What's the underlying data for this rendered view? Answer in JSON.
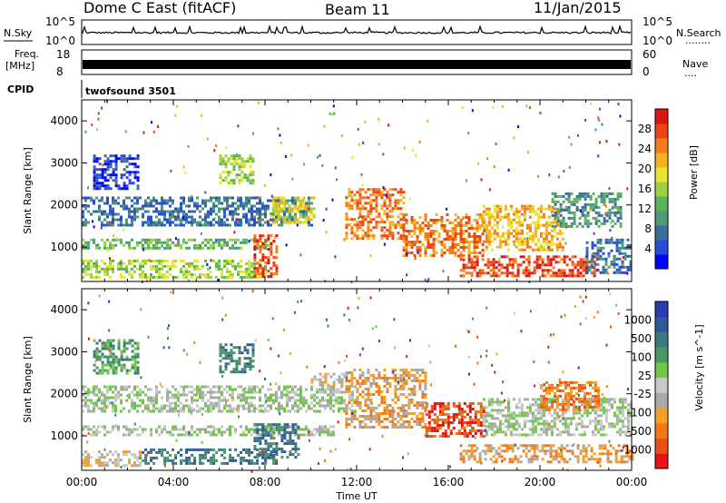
{
  "header": {
    "title": "Dome C East (fitACF)",
    "beam": "Beam 11",
    "date": "11/Jan/2015"
  },
  "colors": {
    "power": [
      "#0000ff",
      "#2a4dd8",
      "#3b6e9c",
      "#4f9a78",
      "#5ab45a",
      "#9ed23c",
      "#e6e632",
      "#f5b41e",
      "#f57d19",
      "#eb4614",
      "#dc1414"
    ],
    "velocity": [
      "#2a3cb4",
      "#32589c",
      "#3c7882",
      "#4a9664",
      "#6ec846",
      "#c8c8c8",
      "#aaaaaa",
      "#f5a028",
      "#f57814",
      "#eb5014",
      "#e61414"
    ]
  },
  "strips": {
    "nsky": {
      "label": "N.Sky",
      "ticks": [
        "10^5",
        "10^0"
      ],
      "right_ticks": [
        "10^5",
        "10^0"
      ],
      "right_label": "N.Search",
      "right_dots": "........"
    },
    "freq": {
      "label_line1": "Freq.",
      "label_line2": "[MHz]",
      "ticks": [
        "18",
        "8"
      ],
      "right_ticks": [
        "60",
        "0"
      ],
      "right_label": "Nave",
      "right_dots": "...."
    },
    "cpid": {
      "label": "CPID",
      "value": "twofsound 3501"
    }
  },
  "chart_data": [
    {
      "type": "heatmap",
      "name": "power",
      "title": "",
      "xlabel": "",
      "ylabel": "Slant Range [km]",
      "yticks": [
        "1000",
        "2000",
        "3000",
        "4000"
      ],
      "ylim": [
        180,
        4500
      ],
      "xlim": [
        0,
        24
      ],
      "colorbar": {
        "label": "Power [dB]",
        "ticks": [
          "4",
          "8",
          "12",
          "16",
          "20",
          "24",
          "28"
        ],
        "range": [
          0,
          30
        ]
      },
      "bands": [
        {
          "t0": 0.0,
          "t1": 8.0,
          "r0": 300,
          "r1": 700,
          "level": 5
        },
        {
          "t0": 0.0,
          "t1": 8.2,
          "r0": 950,
          "r1": 1200,
          "level": 4
        },
        {
          "t0": 0.0,
          "t1": 10.0,
          "r0": 1500,
          "r1": 2200,
          "level": 2
        },
        {
          "t0": 0.5,
          "t1": 2.5,
          "r0": 2400,
          "r1": 3200,
          "level": 1
        },
        {
          "t0": 6.0,
          "t1": 7.5,
          "r0": 2500,
          "r1": 3200,
          "level": 5
        },
        {
          "t0": 7.5,
          "t1": 8.5,
          "r0": 300,
          "r1": 1300,
          "level": 9
        },
        {
          "t0": 8.3,
          "t1": 10.2,
          "r0": 1600,
          "r1": 2200,
          "level": 6
        },
        {
          "t0": 11.5,
          "t1": 14.0,
          "r0": 1200,
          "r1": 2400,
          "level": 8
        },
        {
          "t0": 14.0,
          "t1": 17.5,
          "r0": 800,
          "r1": 1800,
          "level": 8
        },
        {
          "t0": 16.5,
          "t1": 22.5,
          "r0": 300,
          "r1": 800,
          "level": 9
        },
        {
          "t0": 17.5,
          "t1": 21.0,
          "r0": 900,
          "r1": 2000,
          "level": 7
        },
        {
          "t0": 20.5,
          "t1": 23.5,
          "r0": 1500,
          "r1": 2300,
          "level": 3
        },
        {
          "t0": 22.0,
          "t1": 24.0,
          "r0": 400,
          "r1": 1200,
          "level": 2
        }
      ]
    },
    {
      "type": "heatmap",
      "name": "velocity",
      "title": "",
      "xlabel": "Time UT",
      "ylabel": "Slant Range [km]",
      "yticks": [
        "1000",
        "2000",
        "3000",
        "4000"
      ],
      "ylim": [
        180,
        4500
      ],
      "xlim": [
        0,
        24
      ],
      "xticks": [
        "00:00",
        "04:00",
        "08:00",
        "12:00",
        "16:00",
        "20:00",
        "00:00"
      ],
      "colorbar": {
        "label": "Velocity [m s^-1]",
        "ticks": [
          "1000",
          "500",
          "100",
          "25",
          "-25",
          "-100",
          "-500",
          "-1000"
        ],
        "range": [
          -1200,
          1200
        ]
      },
      "bands": [
        {
          "t0": 0.0,
          "t1": 2.5,
          "r0": 300,
          "r1": 650,
          "level": 4
        },
        {
          "t0": 2.5,
          "t1": 8.5,
          "r0": 350,
          "r1": 700,
          "level": 8
        },
        {
          "t0": 0.0,
          "t1": 11.0,
          "r0": 1000,
          "r1": 1250,
          "level": 5
        },
        {
          "t0": 0.0,
          "t1": 12.0,
          "r0": 1600,
          "r1": 2200,
          "level": 5
        },
        {
          "t0": 0.5,
          "t1": 2.5,
          "r0": 2500,
          "r1": 3300,
          "level": 7
        },
        {
          "t0": 6.0,
          "t1": 7.5,
          "r0": 2500,
          "r1": 3200,
          "level": 8
        },
        {
          "t0": 7.5,
          "t1": 9.5,
          "r0": 500,
          "r1": 1300,
          "level": 8
        },
        {
          "t0": 11.5,
          "t1": 15.0,
          "r0": 1200,
          "r1": 2600,
          "level": 3
        },
        {
          "t0": 15.0,
          "t1": 17.5,
          "r0": 1000,
          "r1": 1800,
          "level": 1
        },
        {
          "t0": 16.5,
          "t1": 24.0,
          "r0": 400,
          "r1": 800,
          "level": 3
        },
        {
          "t0": 17.5,
          "t1": 24.0,
          "r0": 1000,
          "r1": 1900,
          "level": 5
        },
        {
          "t0": 20.0,
          "t1": 22.5,
          "r0": 1600,
          "r1": 2300,
          "level": 2
        },
        {
          "t0": 10.0,
          "t1": 11.5,
          "r0": 2200,
          "r1": 2500,
          "level": 4
        }
      ]
    }
  ]
}
